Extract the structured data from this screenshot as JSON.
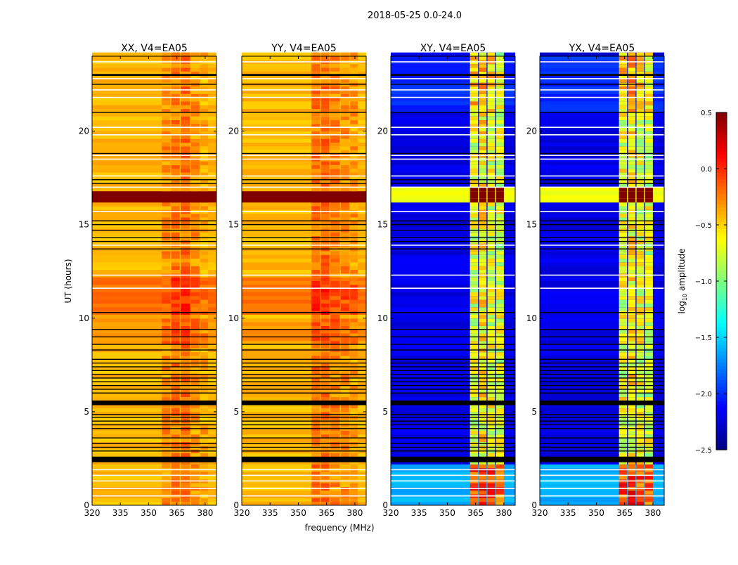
{
  "chart_data": {
    "type": "heatmap",
    "title": "2018-05-25 0.0-24.0",
    "xlabel": "frequency (MHz)",
    "ylabel": "UT (hours)",
    "xlim": [
      320,
      386
    ],
    "ylim": [
      0,
      24
    ],
    "xticks": [
      320,
      335,
      350,
      365,
      380
    ],
    "yticks": [
      0,
      5,
      10,
      15,
      20
    ],
    "colorbar": {
      "label": "log10 amplitude",
      "label_main": "log",
      "label_sub": "10",
      "label_rest": " amplitude",
      "colormap": "jet",
      "vmin": -2.5,
      "vmax": 0.5,
      "ticks": [
        0.5,
        0.0,
        -0.5,
        -1.0,
        -1.5,
        -2.0,
        -2.5
      ],
      "tick_labels": [
        "0.5",
        "0.0",
        "−0.5",
        "−1.0",
        "−1.5",
        "−2.0",
        "−2.5"
      ]
    },
    "flagged_black_ranges_hours": [
      [
        2.3,
        2.6
      ],
      [
        5.35,
        5.6
      ],
      [
        22.95,
        23.05
      ]
    ],
    "flagged_black_lines_hours": [
      2.9,
      3.1,
      3.3,
      3.6,
      4.1,
      4.3,
      4.5,
      4.7,
      4.85,
      6.0,
      6.2,
      6.4,
      6.6,
      6.8,
      7.0,
      7.2,
      7.4,
      7.6,
      7.8,
      8.3,
      8.6,
      9.0,
      9.4,
      10.3,
      13.7,
      14.1,
      14.3,
      14.7,
      15.0,
      15.2,
      17.2,
      17.4,
      18.8,
      21.0,
      22.5
    ],
    "blank_lines_hours": [
      0.5,
      0.9,
      1.3,
      1.6,
      1.9,
      11.6,
      12.3,
      13.9,
      15.7,
      17.0,
      17.6,
      18.5,
      18.7,
      19.8,
      20.2,
      21.8,
      22.2,
      22.8,
      23.7
    ],
    "panels": [
      {
        "title": "XX, V4=EA05",
        "base": -0.42,
        "time_offsets": [
          [
            10.2,
            12.2,
            0.2
          ],
          [
            8.6,
            10.0,
            0.1
          ],
          [
            16.2,
            16.8,
            1.2
          ]
        ],
        "band_segments": [
          [
            357,
            361.5,
            0.12
          ],
          [
            362,
            366.5,
            0.18
          ],
          [
            367,
            372,
            0.22
          ],
          [
            372.5,
            377,
            0.1
          ],
          [
            377.5,
            381.5,
            0.05
          ]
        ]
      },
      {
        "title": "YY, V4=EA05",
        "base": -0.42,
        "time_offsets": [
          [
            10.2,
            12.2,
            0.2
          ],
          [
            8.6,
            10.0,
            0.1
          ],
          [
            16.2,
            16.8,
            1.2
          ]
        ],
        "band_segments": [
          [
            357,
            361.5,
            0.2
          ],
          [
            362,
            366.5,
            0.22
          ],
          [
            367,
            372,
            0.15
          ],
          [
            372.5,
            377,
            0.12
          ],
          [
            377.5,
            381.5,
            0.08
          ]
        ]
      },
      {
        "title": "XY, V4=EA05",
        "base": -2.2,
        "time_offsets": [
          [
            0,
            2.1,
            0.6
          ],
          [
            16.2,
            16.9,
            1.5
          ],
          [
            21,
            24,
            0.2
          ]
        ],
        "band_segments": [
          [
            362,
            366.3,
            1.5
          ],
          [
            366.8,
            370.8,
            1.6
          ],
          [
            371.3,
            375.3,
            1.5
          ],
          [
            375.8,
            380,
            1.45
          ]
        ]
      },
      {
        "title": "YX, V4=EA05",
        "base": -2.2,
        "time_offsets": [
          [
            0,
            2.1,
            0.6
          ],
          [
            16.2,
            16.9,
            1.5
          ],
          [
            21,
            24,
            0.2
          ]
        ],
        "band_segments": [
          [
            362,
            366.3,
            1.5
          ],
          [
            366.8,
            370.8,
            1.6
          ],
          [
            371.3,
            375.3,
            1.5
          ],
          [
            375.8,
            380,
            1.45
          ]
        ]
      }
    ]
  }
}
